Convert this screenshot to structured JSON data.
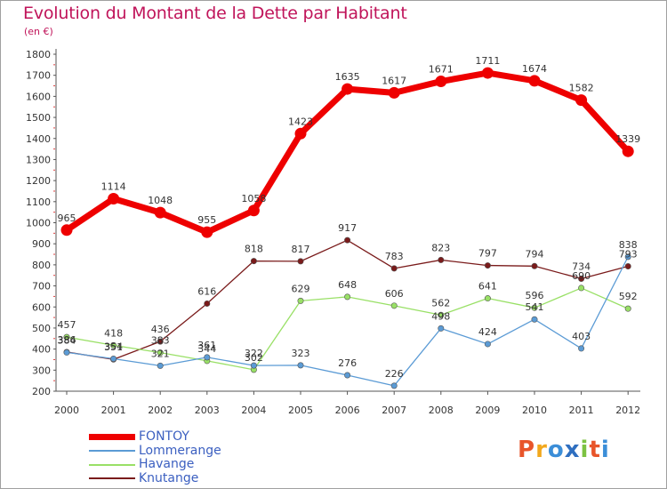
{
  "title": "Evolution du Montant de la Dette par Habitant",
  "unit": "(en €)",
  "logo": "Proxiti",
  "logo_colors": [
    "#e8552a",
    "#f2a81d",
    "#3b8ed8",
    "#2f6fc0",
    "#7cc242",
    "#e8552a",
    "#3b8ed8"
  ],
  "chart_data": {
    "type": "line",
    "x": [
      "2000",
      "2001",
      "2002",
      "2003",
      "2004",
      "2005",
      "2006",
      "2007",
      "2008",
      "2009",
      "2010",
      "2011",
      "2012"
    ],
    "ylim": [
      200,
      1800
    ],
    "yticks": [
      "200",
      "300",
      "400",
      "500",
      "600",
      "700",
      "800",
      "900",
      "1000",
      "1100",
      "1200",
      "1300",
      "1400",
      "1500",
      "1600",
      "1700",
      "1800"
    ],
    "grid": false,
    "legend_position": "bottom-left",
    "series": [
      {
        "name": "FONTOY",
        "color": "#ee0000",
        "values": [
          965,
          1114,
          1048,
          955,
          1058,
          1423,
          1635,
          1617,
          1671,
          1711,
          1674,
          1582,
          1339
        ],
        "labels": [
          "965",
          "1114",
          "1048",
          "955",
          "1058",
          "1423",
          "1635",
          "1617",
          "1671",
          "1711",
          "1674",
          "1582",
          "1339"
        ]
      },
      {
        "name": "Lommerange",
        "color": "#5b9bd5",
        "values": [
          384,
          354,
          321,
          361,
          322,
          323,
          276,
          226,
          498,
          424,
          541,
          403,
          838
        ],
        "labels": [
          "384",
          "354",
          "321",
          "361",
          "322",
          "323",
          "276",
          "226",
          "498",
          "424",
          "541",
          "403",
          "838"
        ]
      },
      {
        "name": "Havange",
        "color": "#99e066",
        "values": [
          457,
          418,
          383,
          344,
          302,
          629,
          648,
          606,
          562,
          641,
          596,
          690,
          592
        ],
        "labels": [
          "457",
          "418",
          "383",
          "344",
          "302",
          "629",
          "648",
          "606",
          "562",
          "641",
          "596",
          "690",
          "592"
        ]
      },
      {
        "name": "Knutange",
        "color": "#7a1b1b",
        "values": [
          386,
          351,
          436,
          616,
          818,
          817,
          917,
          783,
          823,
          797,
          794,
          734,
          793
        ],
        "labels": [
          "386",
          "351",
          "436",
          "616",
          "818",
          "817",
          "917",
          "783",
          "823",
          "797",
          "794",
          "734",
          "793"
        ]
      }
    ]
  }
}
